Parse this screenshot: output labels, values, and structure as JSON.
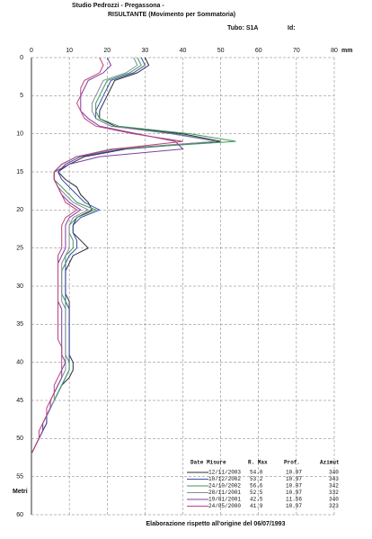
{
  "header": {
    "line1": "Studio Pedrozzi - Pregassona -",
    "title": "RISULTANTE (Movimento per Sommatoria)",
    "tube": "Tubo: S1A",
    "id": "Id:"
  },
  "chart_data": {
    "type": "line",
    "x_label": "mm",
    "y_label": "Metri",
    "xlim": [
      0,
      80
    ],
    "xticks": [
      0,
      10,
      20,
      30,
      40,
      50,
      60,
      70,
      80
    ],
    "ylim": [
      0,
      60
    ],
    "yticks": [
      0,
      5,
      10,
      15,
      20,
      25,
      30,
      35,
      40,
      45,
      50,
      55,
      60
    ],
    "grid": true,
    "depths": [
      0,
      1,
      2,
      3,
      4,
      5,
      6,
      7,
      8,
      9,
      10,
      11,
      12,
      13,
      14,
      15,
      16,
      17,
      18,
      19,
      20,
      21,
      22,
      23,
      24,
      25,
      26,
      27,
      28,
      29,
      30,
      31,
      32,
      33,
      34,
      35,
      36,
      37,
      38,
      39,
      40,
      41,
      42,
      43,
      44,
      45,
      46,
      47,
      48,
      49,
      50,
      51,
      52
    ],
    "legend_columns": [
      "Date Misure",
      "R. Max",
      "Prof.",
      "Azimut"
    ],
    "series": [
      {
        "name": "12/11/2003",
        "color": "#2b2b3a",
        "r_max": "54.0",
        "prof": "10.97",
        "azimut": "340",
        "values": [
          30,
          31,
          28,
          22,
          21,
          20,
          19,
          18,
          18,
          22,
          40,
          50,
          25,
          14,
          10,
          7,
          9,
          12,
          13,
          15,
          16,
          12,
          11,
          11,
          13,
          15,
          11,
          10,
          9,
          9,
          9,
          9,
          10,
          10,
          10,
          10,
          10,
          10,
          10,
          10,
          11,
          11,
          10,
          8,
          7,
          6,
          5,
          4,
          4,
          3,
          2,
          1,
          0
        ]
      },
      {
        "name": "10/12/2002",
        "color": "#3a4fa8",
        "r_max": "53.2",
        "prof": "10.97",
        "azimut": "343",
        "values": [
          29,
          30,
          27,
          21,
          20,
          19,
          18,
          17,
          17,
          21,
          38,
          49,
          24,
          13,
          9,
          7,
          8,
          10,
          12,
          14,
          18,
          13,
          11,
          11,
          12,
          12,
          10,
          9,
          9,
          9,
          9,
          9,
          9,
          10,
          10,
          10,
          10,
          10,
          10,
          10,
          10,
          10,
          9,
          8,
          7,
          6,
          5,
          4,
          4,
          3,
          2,
          1,
          0
        ]
      },
      {
        "name": "24/10/2002",
        "color": "#3e9a5a",
        "r_max": "56.6",
        "prof": "10.97",
        "azimut": "342",
        "values": [
          28,
          29,
          26,
          20,
          19,
          18,
          17,
          17,
          18,
          23,
          42,
          54,
          22,
          12,
          8,
          6,
          6,
          8,
          10,
          12,
          17,
          12,
          10,
          10,
          11,
          11,
          9,
          9,
          8,
          8,
          8,
          8,
          9,
          9,
          9,
          9,
          9,
          9,
          9,
          9,
          10,
          10,
          9,
          8,
          7,
          6,
          5,
          4,
          3,
          3,
          2,
          1,
          0
        ]
      },
      {
        "name": "28/11/2001",
        "color": "#8a8a9a",
        "r_max": "52.5",
        "prof": "10.97",
        "azimut": "332",
        "values": [
          27,
          28,
          25,
          19,
          18,
          17,
          16,
          16,
          17,
          21,
          37,
          49,
          21,
          12,
          8,
          6,
          6,
          7,
          9,
          11,
          15,
          11,
          10,
          10,
          10,
          10,
          9,
          8,
          8,
          8,
          8,
          8,
          8,
          9,
          9,
          9,
          9,
          9,
          9,
          9,
          9,
          9,
          8,
          7,
          6,
          6,
          5,
          4,
          3,
          3,
          2,
          1,
          0
        ]
      },
      {
        "name": "19/01/2001",
        "color": "#7a3fa0",
        "r_max": "42.5",
        "prof": "11.56",
        "azimut": "340",
        "values": [
          20,
          21,
          19,
          15,
          14,
          13,
          13,
          13,
          15,
          18,
          28,
          38,
          40,
          18,
          10,
          6,
          6,
          7,
          8,
          10,
          13,
          10,
          9,
          9,
          9,
          9,
          8,
          7,
          7,
          7,
          7,
          7,
          7,
          8,
          8,
          8,
          8,
          8,
          8,
          8,
          9,
          8,
          8,
          7,
          6,
          5,
          5,
          4,
          3,
          3,
          2,
          1,
          0
        ]
      },
      {
        "name": "24/05/2000",
        "color": "#c0407a",
        "r_max": "41.9",
        "prof": "10.97",
        "azimut": "323",
        "values": [
          18,
          19,
          18,
          14,
          13,
          13,
          12,
          13,
          14,
          17,
          27,
          40,
          22,
          12,
          8,
          6,
          6,
          7,
          8,
          9,
          12,
          9,
          8,
          8,
          8,
          8,
          7,
          7,
          7,
          7,
          7,
          7,
          7,
          7,
          7,
          7,
          7,
          7,
          8,
          8,
          8,
          8,
          7,
          6,
          6,
          5,
          4,
          4,
          3,
          2,
          2,
          1,
          0
        ]
      }
    ]
  },
  "footer": "Elaborazione rispetto all'origine del 06/07/1993"
}
